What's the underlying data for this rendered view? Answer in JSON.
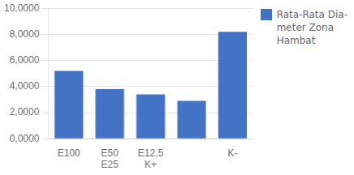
{
  "chart_data": {
    "type": "bar",
    "categories": [
      "E100",
      [
        "E50",
        "E25"
      ],
      [
        "E12.5",
        "K+"
      ],
      null,
      "K-"
    ],
    "series": [
      {
        "name": "Rata-Rata Dia-\nmeter Zona\nHambat",
        "color": "#4472C4",
        "values": [
          5.2,
          3.8,
          3.4,
          2.9,
          8.2
        ]
      }
    ],
    "ylim": [
      0,
      10
    ],
    "yticks": [
      {
        "value": 0,
        "label": "0,0000"
      },
      {
        "value": 2,
        "label": "2,0000"
      },
      {
        "value": 4,
        "label": "4,0000"
      },
      {
        "value": 6,
        "label": "6,0000"
      },
      {
        "value": 8,
        "label": "8,0000"
      },
      {
        "value": 10,
        "label": "10,0000"
      }
    ],
    "grid": true,
    "legend": "right"
  }
}
